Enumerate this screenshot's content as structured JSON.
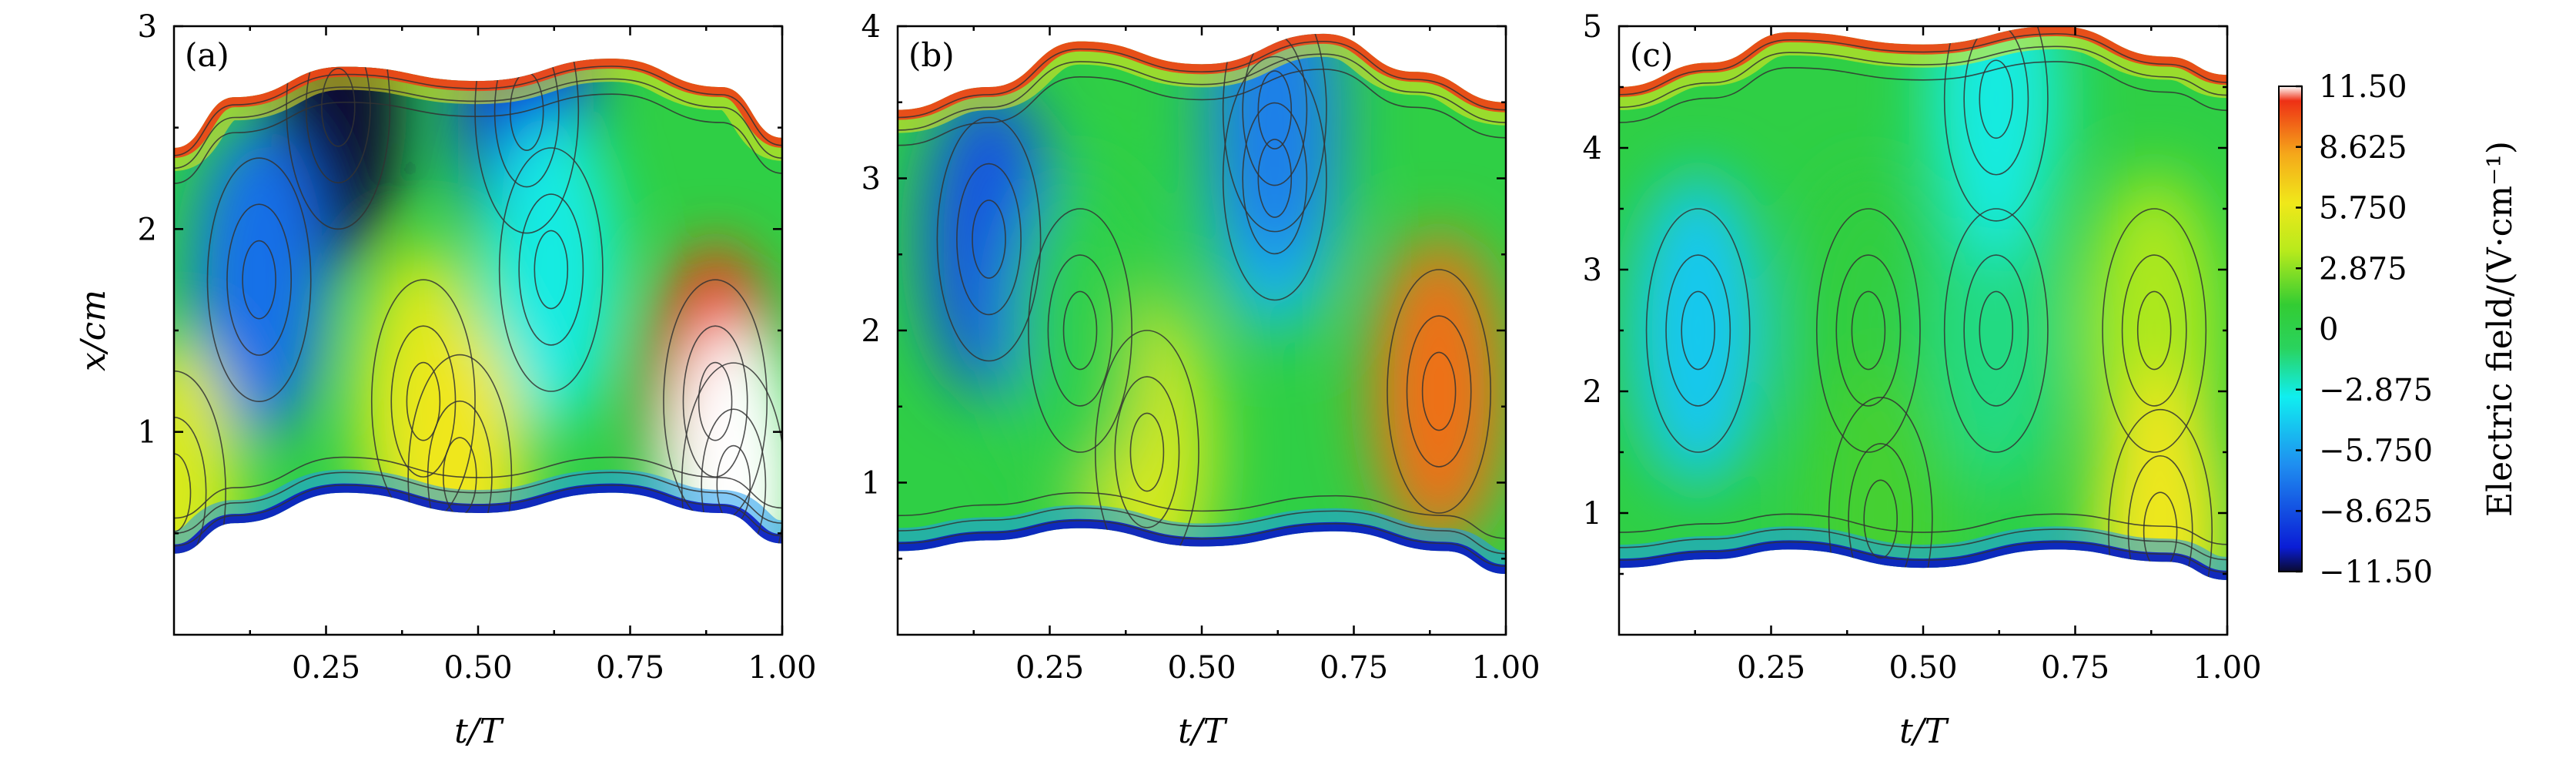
{
  "chart_data": [
    {
      "type": "heatmap",
      "panel_label": "(a)",
      "xlabel": "t/T",
      "ylabel": "x/cm",
      "xlim": [
        0,
        1.0
      ],
      "ylim": [
        0,
        3
      ],
      "xticks": [
        0.25,
        0.5,
        0.75,
        1.0
      ],
      "xtick_labels": [
        "0.25",
        "0.50",
        "0.75",
        "1.00"
      ],
      "yticks": [
        1,
        2,
        3
      ],
      "ytick_labels": [
        "1",
        "2",
        "3"
      ],
      "lower_boundary": [
        [
          0,
          0.4
        ],
        [
          0.1,
          0.55
        ],
        [
          0.28,
          0.7
        ],
        [
          0.5,
          0.6
        ],
        [
          0.72,
          0.7
        ],
        [
          0.9,
          0.6
        ],
        [
          1.0,
          0.45
        ]
      ],
      "upper_boundary": [
        [
          0,
          2.4
        ],
        [
          0.1,
          2.65
        ],
        [
          0.28,
          2.8
        ],
        [
          0.5,
          2.73
        ],
        [
          0.72,
          2.84
        ],
        [
          0.9,
          2.7
        ],
        [
          1.0,
          2.45
        ]
      ],
      "features": [
        {
          "t": 0.27,
          "x": 2.6,
          "value": -11.5
        },
        {
          "t": 0.58,
          "x": 2.58,
          "value": -10.0
        },
        {
          "t": 0.14,
          "x": 1.75,
          "value": -7.5
        },
        {
          "t": 0.62,
          "x": 1.8,
          "value": -3.0
        },
        {
          "t": 0.41,
          "x": 1.15,
          "value": 5.0
        },
        {
          "t": 0.47,
          "x": 0.78,
          "value": 6.0
        },
        {
          "t": 0.89,
          "x": 1.15,
          "value": 10.5
        },
        {
          "t": 0.92,
          "x": 0.74,
          "value": 11.5
        },
        {
          "t": 0.0,
          "x": 0.7,
          "value": 5.0
        }
      ]
    },
    {
      "type": "heatmap",
      "panel_label": "(b)",
      "xlabel": "t/T",
      "ylabel": "",
      "xlim": [
        0,
        1.0
      ],
      "ylim": [
        0,
        4
      ],
      "xticks": [
        0.25,
        0.5,
        0.75,
        1.0
      ],
      "xtick_labels": [
        "0.25",
        "0.50",
        "0.75",
        "1.00"
      ],
      "yticks": [
        1,
        2,
        3,
        4
      ],
      "ytick_labels": [
        "1",
        "2",
        "3",
        "4"
      ],
      "lower_boundary": [
        [
          0,
          0.55
        ],
        [
          0.15,
          0.62
        ],
        [
          0.3,
          0.7
        ],
        [
          0.5,
          0.58
        ],
        [
          0.72,
          0.68
        ],
        [
          0.9,
          0.55
        ],
        [
          1.0,
          0.4
        ]
      ],
      "upper_boundary": [
        [
          0,
          3.45
        ],
        [
          0.15,
          3.6
        ],
        [
          0.3,
          3.9
        ],
        [
          0.5,
          3.75
        ],
        [
          0.7,
          3.95
        ],
        [
          0.85,
          3.7
        ],
        [
          1.0,
          3.5
        ]
      ],
      "features": [
        {
          "t": 0.15,
          "x": 2.6,
          "value": -8.5
        },
        {
          "t": 0.62,
          "x": 3.0,
          "value": -5.0
        },
        {
          "t": 0.62,
          "x": 3.45,
          "value": -7.0
        },
        {
          "t": 0.41,
          "x": 1.2,
          "value": 5.0
        },
        {
          "t": 0.89,
          "x": 1.6,
          "value": 9.5
        },
        {
          "t": 0.3,
          "x": 2.0,
          "value": 0.0
        }
      ]
    },
    {
      "type": "heatmap",
      "panel_label": "(c)",
      "xlabel": "t/T",
      "ylabel": "",
      "xlim": [
        0,
        1.0
      ],
      "ylim": [
        0,
        5
      ],
      "xticks": [
        0.25,
        0.5,
        0.75,
        1.0
      ],
      "xtick_labels": [
        "0.25",
        "0.50",
        "0.75",
        "1.00"
      ],
      "yticks": [
        1,
        2,
        3,
        4,
        5
      ],
      "ytick_labels": [
        "1",
        "2",
        "3",
        "4",
        "5"
      ],
      "lower_boundary": [
        [
          0,
          0.55
        ],
        [
          0.15,
          0.62
        ],
        [
          0.28,
          0.7
        ],
        [
          0.5,
          0.55
        ],
        [
          0.72,
          0.7
        ],
        [
          0.9,
          0.6
        ],
        [
          1.0,
          0.45
        ]
      ],
      "upper_boundary": [
        [
          0,
          4.5
        ],
        [
          0.15,
          4.7
        ],
        [
          0.28,
          4.95
        ],
        [
          0.5,
          4.85
        ],
        [
          0.72,
          5.0
        ],
        [
          0.9,
          4.75
        ],
        [
          1.0,
          4.6
        ]
      ],
      "features": [
        {
          "t": 0.13,
          "x": 2.5,
          "value": -4.5
        },
        {
          "t": 0.41,
          "x": 2.5,
          "value": 0.5
        },
        {
          "t": 0.62,
          "x": 2.5,
          "value": -1.5
        },
        {
          "t": 0.62,
          "x": 4.4,
          "value": -3.0
        },
        {
          "t": 0.88,
          "x": 2.5,
          "value": 3.5
        },
        {
          "t": 0.89,
          "x": 0.85,
          "value": 6.0
        },
        {
          "t": 0.43,
          "x": 0.95,
          "value": 1.5
        }
      ]
    }
  ],
  "colorbar": {
    "label": "Electric field/(V·cm⁻¹)",
    "min": -11.5,
    "max": 11.5,
    "tick_values": [
      11.5,
      8.625,
      5.75,
      2.875,
      0,
      -2.875,
      -5.75,
      -8.625,
      -11.5
    ],
    "tick_labels": [
      "11.50",
      "8.625",
      "5.750",
      "2.875",
      "0",
      "−2.875",
      "−5.750",
      "−8.625",
      "−11.50"
    ],
    "colors": [
      "#0a0a30",
      "#0a1dd6",
      "#1f8ef0",
      "#10eef0",
      "#2ad35e",
      "#33cc33",
      "#b7ea1c",
      "#f0e81a",
      "#f5a81a",
      "#ee3015",
      "#ffffff"
    ]
  }
}
